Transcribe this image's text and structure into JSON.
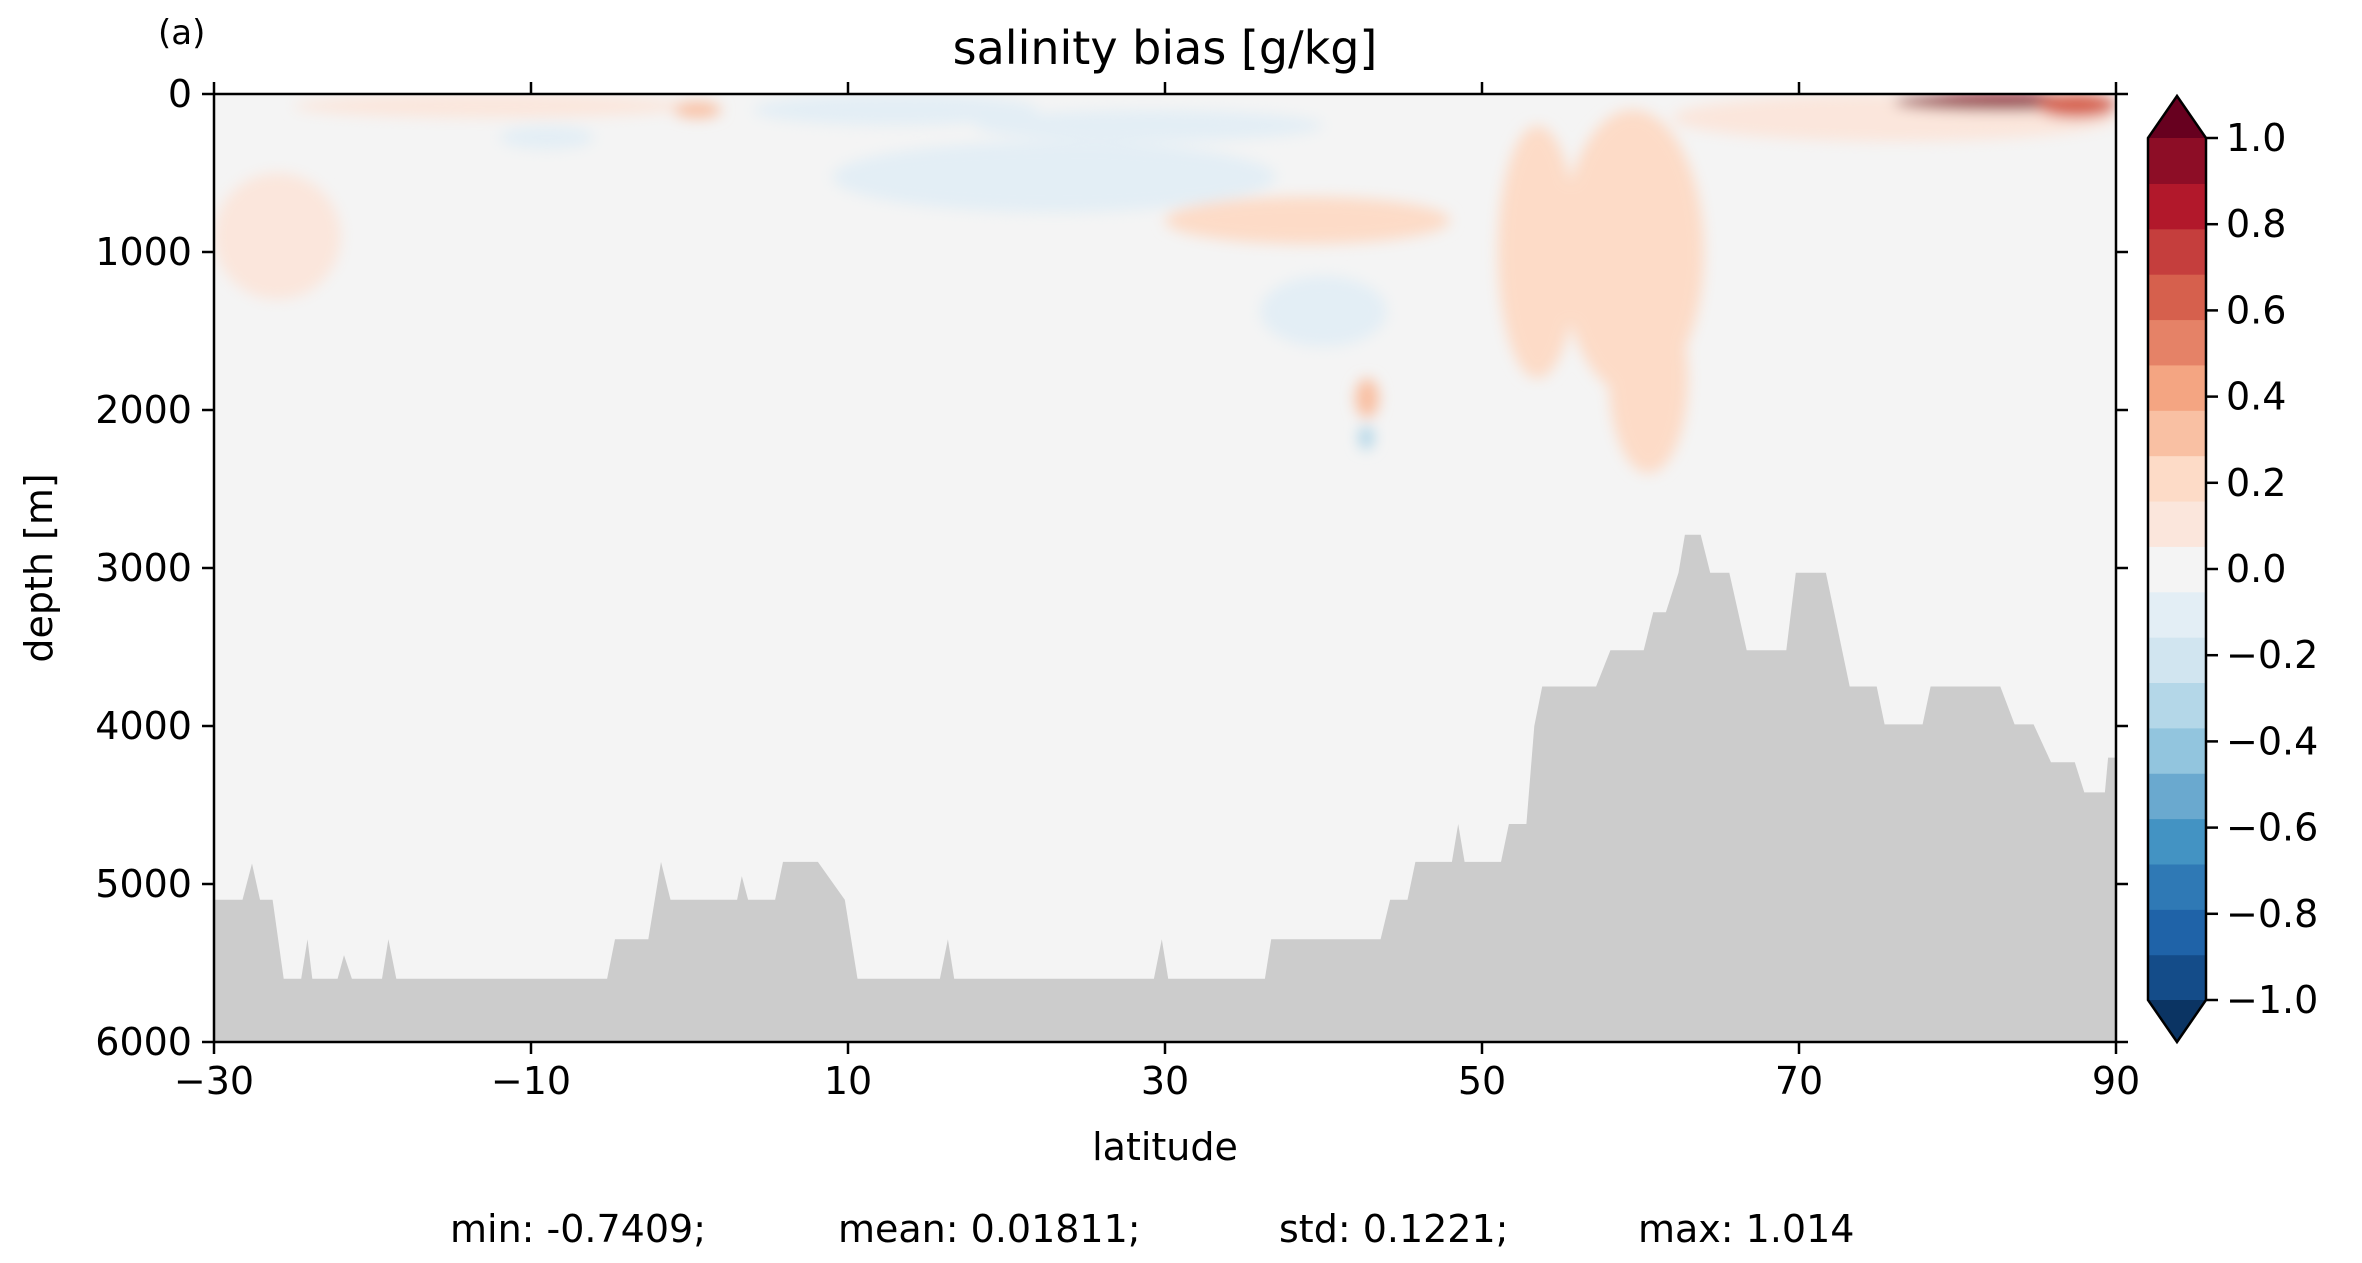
{
  "panel_label": "(a)",
  "stats": {
    "min": "min: -0.7409;",
    "mean": "mean: 0.01811;",
    "std": "std: 0.1221;",
    "max": "max: 1.014"
  },
  "colors": {
    "land": "#cccccc",
    "levels": [
      "#0b3463",
      "#144c89",
      "#1f63a8",
      "#2f79b5",
      "#4393c3",
      "#6aa9cf",
      "#92c5de",
      "#b4d7e8",
      "#d1e5f0",
      "#e3eef5",
      "#f4f4f4",
      "#fbe6dc",
      "#fddbc7",
      "#f9c0a3",
      "#f4a582",
      "#e58267",
      "#d6604d",
      "#c53e3d",
      "#b2182b",
      "#8d0d26",
      "#67001f"
    ]
  },
  "chart_data": {
    "type": "heatmap",
    "title": "salinity bias [g/kg]",
    "xlabel": "latitude",
    "ylabel": "depth [m]",
    "xlim": [
      -30,
      90
    ],
    "ylim": [
      6000,
      0
    ],
    "x_ticks": [
      "−30",
      "−10",
      "10",
      "30",
      "50",
      "70",
      "90"
    ],
    "y_ticks": [
      "0",
      "1000",
      "2000",
      "3000",
      "4000",
      "5000",
      "6000"
    ],
    "colorbar": {
      "range": [
        -1.0,
        1.0
      ],
      "extend": "both",
      "ticks": [
        "1.0",
        "0.8",
        "0.6",
        "0.4",
        "0.2",
        "0.0",
        "−0.2",
        "−0.4",
        "−0.6",
        "−0.8",
        "−1.0"
      ]
    },
    "background_value": 0.03,
    "features": [
      {
        "lat_range": [
          -30,
          -22
        ],
        "depth_range": [
          500,
          1300
        ],
        "value": 0.12
      },
      {
        "lat_range": [
          -30,
          -26
        ],
        "depth_range": [
          3800,
          5000
        ],
        "value": -0.05
      },
      {
        "lat_range": [
          -25,
          0
        ],
        "depth_range": [
          0,
          150
        ],
        "value": 0.1
      },
      {
        "lat_range": [
          -12,
          -6
        ],
        "depth_range": [
          200,
          350
        ],
        "value": -0.1
      },
      {
        "lat_range": [
          -1,
          2
        ],
        "depth_range": [
          50,
          150
        ],
        "value": 0.3
      },
      {
        "lat_range": [
          0,
          13
        ],
        "depth_range": [
          1500,
          2100
        ],
        "value": -0.05
      },
      {
        "lat_range": [
          4,
          22
        ],
        "depth_range": [
          0,
          200
        ],
        "value": -0.1
      },
      {
        "lat_range": [
          9,
          37
        ],
        "depth_range": [
          300,
          750
        ],
        "value": -0.15
      },
      {
        "lat_range": [
          18,
          40
        ],
        "depth_range": [
          100,
          300
        ],
        "value": -0.1
      },
      {
        "lat_range": [
          18,
          42
        ],
        "depth_range": [
          3000,
          5300
        ],
        "value": -0.05
      },
      {
        "lat_range": [
          -28,
          12
        ],
        "depth_range": [
          3200,
          4200
        ],
        "value": -0.05
      },
      {
        "lat_range": [
          30,
          48
        ],
        "depth_range": [
          650,
          950
        ],
        "value": 0.2
      },
      {
        "lat_range": [
          36,
          44
        ],
        "depth_range": [
          1150,
          1600
        ],
        "value": -0.15
      },
      {
        "lat_range": [
          42,
          43.5
        ],
        "depth_range": [
          1800,
          2050
        ],
        "value": 0.3
      },
      {
        "lat_range": [
          42.2,
          43.2
        ],
        "depth_range": [
          2100,
          2250
        ],
        "value": -0.3
      },
      {
        "lat_range": [
          51,
          56
        ],
        "depth_range": [
          200,
          1800
        ],
        "value": 0.2
      },
      {
        "lat_range": [
          55,
          64
        ],
        "depth_range": [
          100,
          1900
        ],
        "value": 0.2
      },
      {
        "lat_range": [
          58,
          63
        ],
        "depth_range": [
          1200,
          2400
        ],
        "value": 0.2
      },
      {
        "lat_range": [
          62,
          90
        ],
        "depth_range": [
          0,
          300
        ],
        "value": 0.12
      },
      {
        "lat_range": [
          58,
          78
        ],
        "depth_range": [
          2600,
          4500
        ],
        "value": -0.05
      },
      {
        "lat_range": [
          76,
          90
        ],
        "depth_range": [
          0,
          100
        ],
        "value": 0.9
      },
      {
        "lat_range": [
          85,
          90
        ],
        "depth_range": [
          0,
          150
        ],
        "value": 0.6
      }
    ],
    "bathymetry": [
      [
        -30,
        5100
      ],
      [
        -28.2,
        5100
      ],
      [
        -27.6,
        4870
      ],
      [
        -27.1,
        5100
      ],
      [
        -26.3,
        5100
      ],
      [
        -25.6,
        5600
      ],
      [
        -24.5,
        5600
      ],
      [
        -24.1,
        5350
      ],
      [
        -23.8,
        5600
      ],
      [
        -22.2,
        5600
      ],
      [
        -21.8,
        5450
      ],
      [
        -21.3,
        5600
      ],
      [
        -19.4,
        5600
      ],
      [
        -19.0,
        5350
      ],
      [
        -18.5,
        5600
      ],
      [
        -5.2,
        5600
      ],
      [
        -4.7,
        5350
      ],
      [
        -2.6,
        5350
      ],
      [
        -1.8,
        4860
      ],
      [
        -1.2,
        5100
      ],
      [
        3.0,
        5100
      ],
      [
        3.3,
        4950
      ],
      [
        3.7,
        5100
      ],
      [
        5.4,
        5100
      ],
      [
        5.9,
        4860
      ],
      [
        8.1,
        4860
      ],
      [
        9.8,
        5100
      ],
      [
        10.6,
        5600
      ],
      [
        15.8,
        5600
      ],
      [
        16.3,
        5350
      ],
      [
        16.7,
        5600
      ],
      [
        29.3,
        5600
      ],
      [
        29.8,
        5350
      ],
      [
        30.2,
        5600
      ],
      [
        36.3,
        5600
      ],
      [
        36.7,
        5350
      ],
      [
        43.6,
        5350
      ],
      [
        44.2,
        5100
      ],
      [
        45.3,
        5100
      ],
      [
        45.8,
        4860
      ],
      [
        48.1,
        4860
      ],
      [
        48.5,
        4620
      ],
      [
        48.9,
        4860
      ],
      [
        51.2,
        4860
      ],
      [
        51.7,
        4620
      ],
      [
        52.8,
        4620
      ],
      [
        53.3,
        4000
      ],
      [
        53.8,
        3750
      ],
      [
        57.2,
        3750
      ],
      [
        58.1,
        3520
      ],
      [
        60.2,
        3520
      ],
      [
        60.8,
        3280
      ],
      [
        61.6,
        3280
      ],
      [
        62.4,
        3030
      ],
      [
        62.8,
        2790
      ],
      [
        63.8,
        2790
      ],
      [
        64.4,
        3030
      ],
      [
        65.6,
        3030
      ],
      [
        66.7,
        3520
      ],
      [
        69.2,
        3520
      ],
      [
        69.8,
        3030
      ],
      [
        71.7,
        3030
      ],
      [
        73.2,
        3750
      ],
      [
        74.9,
        3750
      ],
      [
        75.4,
        3990
      ],
      [
        77.8,
        3990
      ],
      [
        78.3,
        3750
      ],
      [
        82.7,
        3750
      ],
      [
        83.6,
        3990
      ],
      [
        84.8,
        3990
      ],
      [
        85.9,
        4230
      ],
      [
        87.4,
        4230
      ],
      [
        88.0,
        4420
      ],
      [
        89.3,
        4420
      ],
      [
        89.5,
        4200
      ],
      [
        90,
        4200
      ]
    ]
  }
}
